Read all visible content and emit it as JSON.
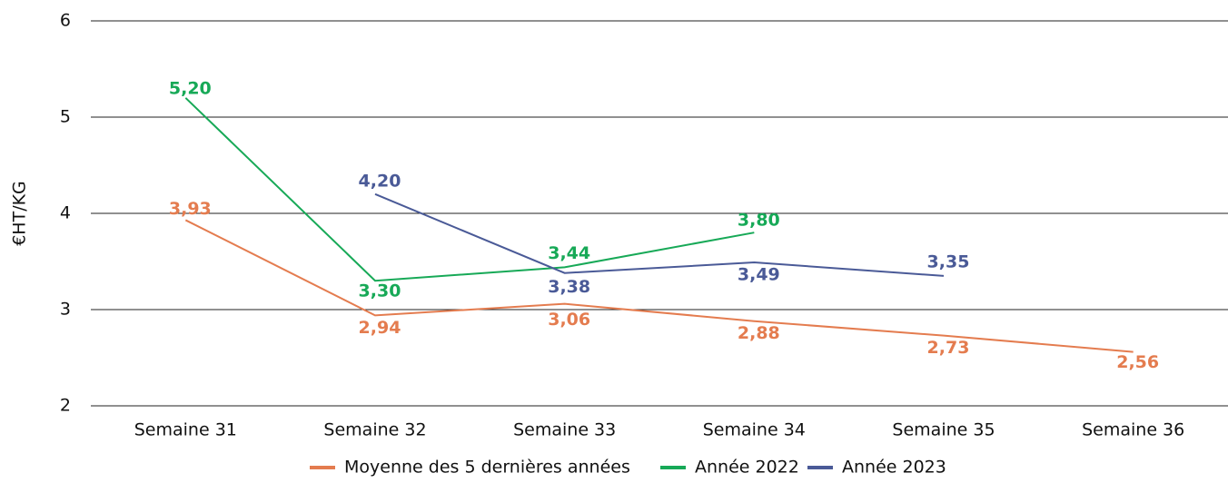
{
  "chart_data": {
    "type": "line",
    "y_label": "€HT/KG",
    "categories": [
      "Semaine 31",
      "Semaine 32",
      "Semaine 33",
      "Semaine 34",
      "Semaine 35",
      "Semaine 36"
    ],
    "series": [
      {
        "name": "Moyenne des 5 dernières années",
        "color": "#e47c4f",
        "values": [
          3.93,
          2.94,
          3.06,
          2.88,
          2.73,
          2.56
        ],
        "value_labels": [
          "3,93",
          "2,94",
          "3,06",
          "2,88",
          "2,73",
          "2,56"
        ]
      },
      {
        "name": "Année 2022",
        "color": "#17a957",
        "values": [
          5.2,
          3.3,
          3.44,
          3.8,
          null,
          null
        ],
        "value_labels": [
          "5,20",
          "3,30",
          "3,44",
          "3,80",
          null,
          null
        ]
      },
      {
        "name": "Année 2023",
        "color": "#4a5a97",
        "values": [
          null,
          4.2,
          3.38,
          3.49,
          3.35,
          null
        ],
        "value_labels": [
          null,
          "4,20",
          "3,38",
          "3,49",
          "3,35",
          null
        ]
      }
    ],
    "ylim": [
      2,
      6
    ],
    "yticks": [
      2,
      3,
      4,
      5,
      6
    ],
    "grid": true,
    "legend": "bottom"
  }
}
